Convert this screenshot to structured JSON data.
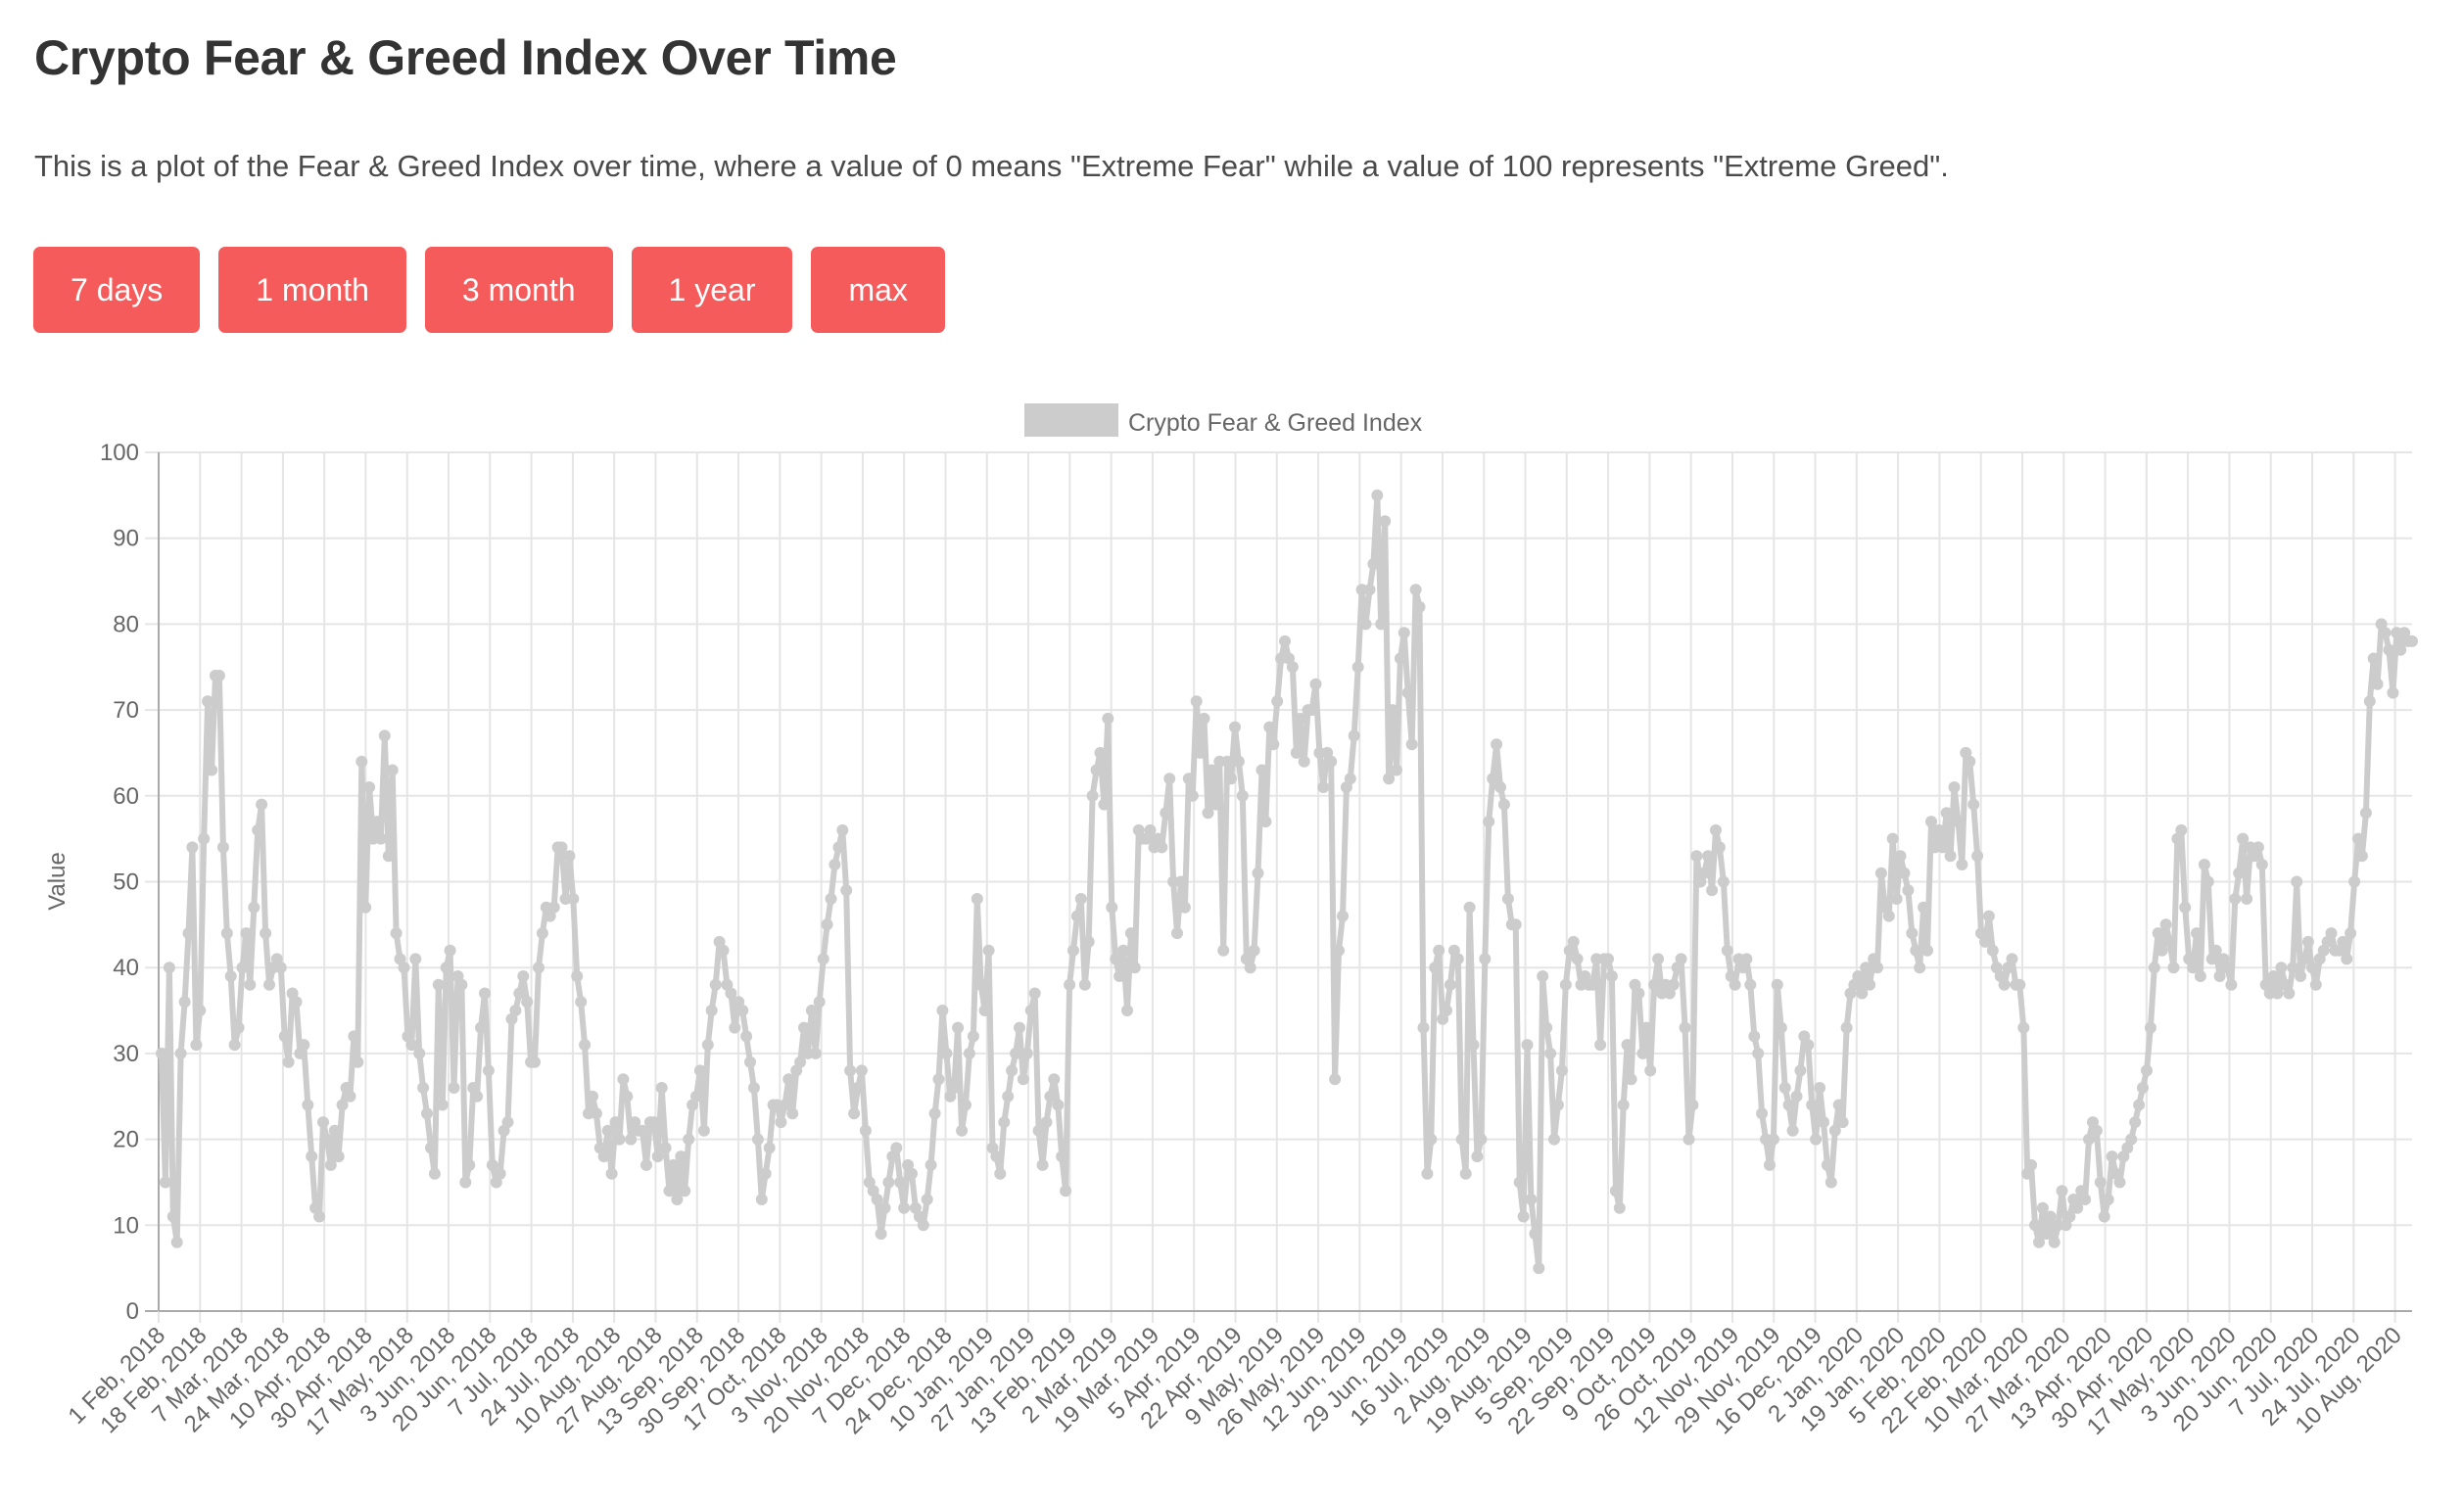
{
  "header": {
    "title": "Crypto Fear & Greed Index Over Time",
    "description": "This is a plot of the Fear & Greed Index over time, where a value of 0 means \"Extreme Fear\" while a value of 100 represents \"Extreme Greed\"."
  },
  "range_buttons": [
    {
      "label": "7 days"
    },
    {
      "label": "1 month"
    },
    {
      "label": "3 month"
    },
    {
      "label": "1 year"
    },
    {
      "label": "max"
    }
  ],
  "colors": {
    "button_bg": "#f65b5b",
    "series": "#cccccc",
    "grid": "#e5e5e5",
    "axis": "#aaaaaa"
  },
  "chart_data": {
    "type": "line",
    "title": "",
    "legend": [
      {
        "name": "Crypto Fear & Greed Index",
        "color": "#cccccc"
      }
    ],
    "legend_position": "top",
    "xlabel": "",
    "ylabel": "Value",
    "ylim": [
      0,
      100
    ],
    "yticks": [
      0,
      10,
      20,
      30,
      40,
      50,
      60,
      70,
      80,
      90,
      100
    ],
    "grid": true,
    "x_tick_labels": [
      "1 Feb, 2018",
      "18 Feb, 2018",
      "7 Mar, 2018",
      "24 Mar, 2018",
      "10 Apr, 2018",
      "30 Apr, 2018",
      "17 May, 2018",
      "3 Jun, 2018",
      "20 Jun, 2018",
      "7 Jul, 2018",
      "24 Jul, 2018",
      "10 Aug, 2018",
      "27 Aug, 2018",
      "13 Sep, 2018",
      "30 Sep, 2018",
      "17 Oct, 2018",
      "3 Nov, 2018",
      "20 Nov, 2018",
      "7 Dec, 2018",
      "24 Dec, 2018",
      "10 Jan, 2019",
      "27 Jan, 2019",
      "13 Feb, 2019",
      "2 Mar, 2019",
      "19 Mar, 2019",
      "5 Apr, 2019",
      "22 Apr, 2019",
      "9 May, 2019",
      "26 May, 2019",
      "12 Jun, 2019",
      "29 Jun, 2019",
      "16 Jul, 2019",
      "2 Aug, 2019",
      "19 Aug, 2019",
      "5 Sep, 2019",
      "22 Sep, 2019",
      "9 Oct, 2019",
      "26 Oct, 2019",
      "12 Nov, 2019",
      "29 Nov, 2019",
      "16 Dec, 2019",
      "2 Jan, 2020",
      "19 Jan, 2020",
      "5 Feb, 2020",
      "22 Feb, 2020",
      "10 Mar, 2020",
      "27 Mar, 2020",
      "13 Apr, 2020",
      "30 Apr, 2020",
      "17 May, 2020",
      "3 Jun, 2020",
      "20 Jun, 2020",
      "7 Jul, 2020",
      "24 Jul, 2020",
      "10 Aug, 2020"
    ],
    "x_start": "1 Feb, 2018",
    "x_end": "14 Aug, 2020",
    "x_step_days": 3,
    "series": [
      {
        "name": "Crypto Fear & Greed Index",
        "values": [
          30,
          15,
          40,
          11,
          8,
          30,
          36,
          44,
          54,
          31,
          35,
          55,
          71,
          63,
          74,
          74,
          54,
          44,
          39,
          31,
          33,
          40,
          44,
          38,
          47,
          56,
          59,
          44,
          38,
          40,
          41,
          40,
          32,
          29,
          37,
          36,
          30,
          31,
          24,
          18,
          12,
          11,
          22,
          20,
          17,
          21,
          18,
          24,
          26,
          25,
          32,
          29,
          64,
          47,
          61,
          55,
          57,
          55,
          67,
          53,
          63,
          44,
          41,
          40,
          32,
          31,
          41,
          30,
          26,
          23,
          19,
          16,
          38,
          24,
          40,
          42,
          26,
          39,
          38,
          15,
          17,
          26,
          25,
          33,
          37,
          28,
          17,
          15,
          16,
          21,
          22,
          34,
          35,
          37,
          39,
          36,
          29,
          29,
          40,
          44,
          47,
          46,
          47,
          54,
          54,
          48,
          53,
          48,
          39,
          36,
          31,
          23,
          25,
          23,
          19,
          18,
          21,
          16,
          22,
          20,
          27,
          25,
          20,
          22,
          21,
          21,
          17,
          22,
          22,
          18,
          26,
          19,
          14,
          17,
          13,
          18,
          14,
          20,
          24,
          25,
          28,
          21,
          31,
          35,
          38,
          43,
          42,
          38,
          37,
          33,
          36,
          35,
          32,
          29,
          26,
          20,
          13,
          16,
          19,
          24,
          24,
          22,
          24,
          27,
          23,
          28,
          29,
          33,
          30,
          35,
          30,
          36,
          41,
          45,
          48,
          52,
          54,
          56,
          49,
          28,
          23,
          26,
          28,
          21,
          15,
          14,
          13,
          9,
          12,
          15,
          18,
          19,
          15,
          12,
          17,
          16,
          12,
          11,
          10,
          13,
          17,
          23,
          27,
          35,
          30,
          25,
          26,
          33,
          21,
          24,
          30,
          32,
          48,
          38,
          35,
          42,
          19,
          18,
          16,
          22,
          25,
          28,
          30,
          33,
          27,
          30,
          35,
          37,
          21,
          17,
          22,
          25,
          27,
          24,
          18,
          14,
          38,
          42,
          46,
          48,
          38,
          43,
          60,
          63,
          65,
          59,
          69,
          47,
          41,
          39,
          42,
          35,
          44,
          40,
          56,
          55,
          55,
          56,
          54,
          55,
          54,
          58,
          62,
          50,
          44,
          50,
          47,
          62,
          60,
          71,
          65,
          69,
          58,
          63,
          59,
          64,
          42,
          64,
          62,
          68,
          64,
          60,
          41,
          40,
          42,
          51,
          63,
          57,
          68,
          66,
          71,
          76,
          78,
          76,
          75,
          65,
          69,
          64,
          70,
          70,
          73,
          65,
          61,
          65,
          64,
          27,
          42,
          46,
          61,
          62,
          67,
          75,
          84,
          80,
          84,
          87,
          95,
          80,
          92,
          62,
          70,
          63,
          76,
          79,
          72,
          66,
          84,
          82,
          33,
          16,
          20,
          40,
          42,
          34,
          35,
          38,
          42,
          41,
          20,
          16,
          47,
          31,
          18,
          20,
          41,
          57,
          62,
          66,
          61,
          59,
          48,
          45,
          45,
          15,
          11,
          31,
          13,
          9,
          5,
          39,
          33,
          30,
          20,
          24,
          28,
          38,
          42,
          43,
          41,
          38,
          39,
          38,
          38,
          41,
          31,
          41,
          41,
          39,
          14,
          12,
          24,
          31,
          27,
          38,
          37,
          30,
          33,
          28,
          38,
          41,
          37,
          38,
          37,
          38,
          40,
          41,
          33,
          20,
          24,
          53,
          50,
          51,
          53,
          49,
          56,
          54,
          50,
          42,
          39,
          38,
          41,
          40,
          41,
          38,
          32,
          30,
          23,
          20,
          17,
          20,
          38,
          33,
          26,
          24,
          21,
          25,
          28,
          32,
          31,
          24,
          20,
          26,
          22,
          17,
          15,
          21,
          24,
          22,
          33,
          37,
          38,
          39,
          37,
          40,
          38,
          41,
          40,
          51,
          47,
          46,
          55,
          48,
          53,
          51,
          49,
          44,
          42,
          40,
          47,
          42,
          57,
          54,
          56,
          54,
          58,
          53,
          61,
          57,
          52,
          65,
          64,
          59,
          53,
          44,
          43,
          46,
          42,
          40,
          39,
          38,
          40,
          41,
          38,
          38,
          33,
          16,
          17,
          10,
          8,
          12,
          9,
          11,
          8,
          10,
          14,
          10,
          11,
          13,
          12,
          14,
          13,
          20,
          22,
          21,
          15,
          11,
          13,
          18,
          16,
          15,
          18,
          19,
          20,
          22,
          24,
          26,
          28,
          33,
          40,
          44,
          42,
          45,
          43,
          40,
          55,
          56,
          47,
          41,
          40,
          44,
          39,
          52,
          50,
          41,
          42,
          39,
          41,
          40,
          38,
          48,
          51,
          55,
          48,
          54,
          53,
          54,
          52,
          38,
          37,
          39,
          37,
          40,
          38,
          37,
          40,
          50,
          39,
          41,
          43,
          40,
          38,
          41,
          42,
          43,
          44,
          42,
          42,
          43,
          41,
          44,
          50,
          55,
          53,
          58,
          71,
          76,
          73,
          80,
          79,
          77,
          72,
          79,
          77,
          79,
          78,
          78
        ]
      }
    ]
  }
}
